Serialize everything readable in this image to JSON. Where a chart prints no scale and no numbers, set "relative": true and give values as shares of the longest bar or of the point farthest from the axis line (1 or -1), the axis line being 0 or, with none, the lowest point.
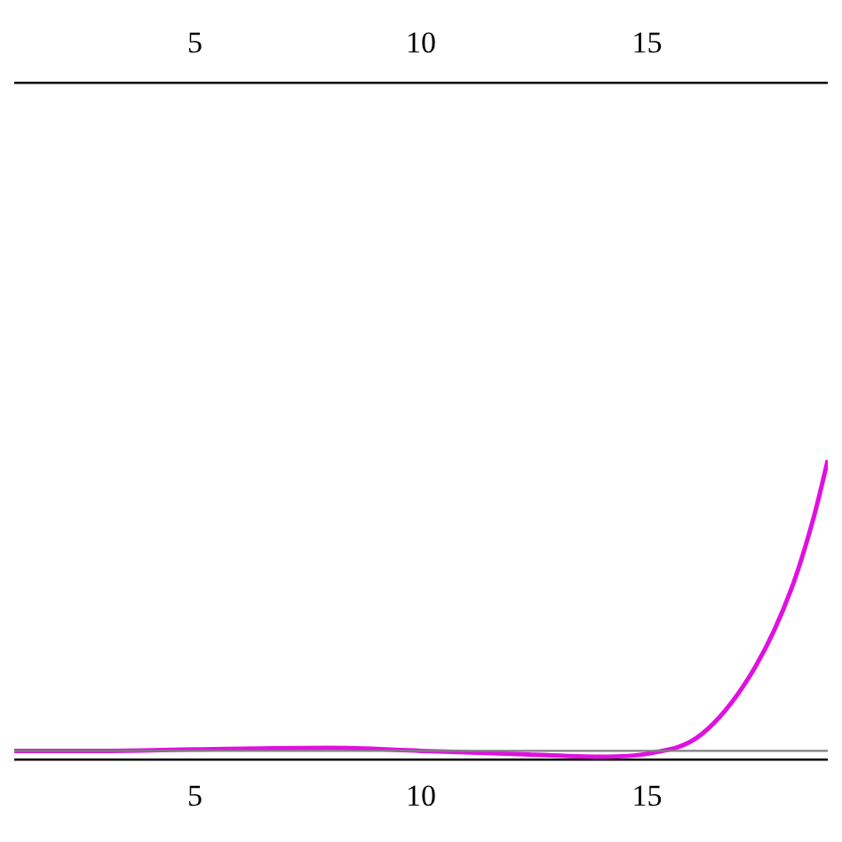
{
  "chart_data": {
    "type": "line",
    "relative": true,
    "x": [
      1,
      3,
      5,
      8,
      10,
      12,
      14,
      15,
      16.2,
      17.4,
      18.2,
      18.7,
      19
    ],
    "series": [
      {
        "color": "#e010e0",
        "values": [
          0,
          0,
          0.005,
          0.01,
          0,
          -0.01,
          -0.02,
          -0.01,
          0.056,
          0.29,
          0.56,
          0.81,
          1
        ]
      }
    ],
    "xlim": [
      1,
      19
    ],
    "xticks": [
      5,
      10,
      15
    ],
    "x2lim": [
      1,
      19
    ],
    "x2ticks": [
      5,
      10,
      15
    ],
    "ref_lines": [
      {
        "axis": "y",
        "value": 0,
        "color": "#808080"
      }
    ],
    "grid": false,
    "legend": false,
    "marker": "none",
    "line_style": "solid"
  }
}
